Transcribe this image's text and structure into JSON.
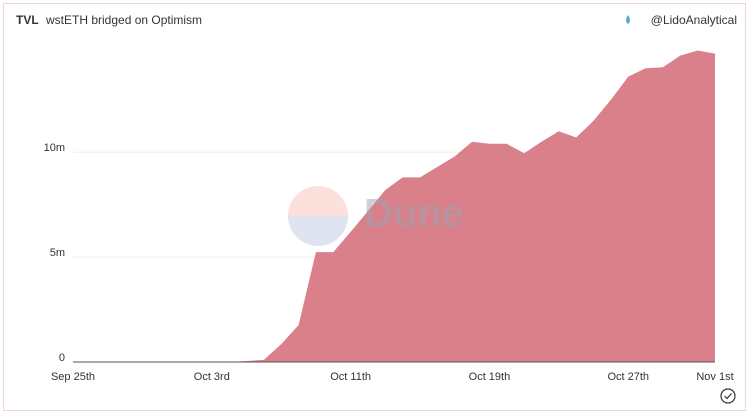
{
  "header": {
    "label": "TVL",
    "title": "wstETH bridged on Optimism",
    "author": "@LidoAnalytical"
  },
  "watermark": "Dune",
  "chart_data": {
    "type": "area",
    "color": "#d9808a",
    "categories": [
      "Sep 25th",
      null,
      null,
      null,
      null,
      null,
      null,
      null,
      "Oct 3rd",
      null,
      null,
      null,
      null,
      null,
      null,
      null,
      "Oct 11th",
      null,
      null,
      null,
      null,
      null,
      null,
      null,
      "Oct 19th",
      null,
      null,
      null,
      null,
      null,
      null,
      null,
      "Oct 27th",
      null,
      null,
      null,
      null,
      "Nov 1st"
    ],
    "values": [
      0,
      0,
      0,
      0,
      0,
      0,
      0,
      0,
      0,
      0,
      50000,
      100000,
      850000,
      1760000,
      5240000,
      5240000,
      6200000,
      7200000,
      8200000,
      8800000,
      8800000,
      9300000,
      9800000,
      10500000,
      10400000,
      10400000,
      9950000,
      10500000,
      11000000,
      10700000,
      11500000,
      12500000,
      13600000,
      14000000,
      14050000,
      14600000,
      14850000,
      14700000
    ],
    "ylim": [
      0,
      15300000
    ],
    "yticks": [
      0,
      {
        "value": 5000000,
        "label": "5m"
      },
      {
        "value": 10000000,
        "label": "10m"
      }
    ],
    "grid": true
  }
}
